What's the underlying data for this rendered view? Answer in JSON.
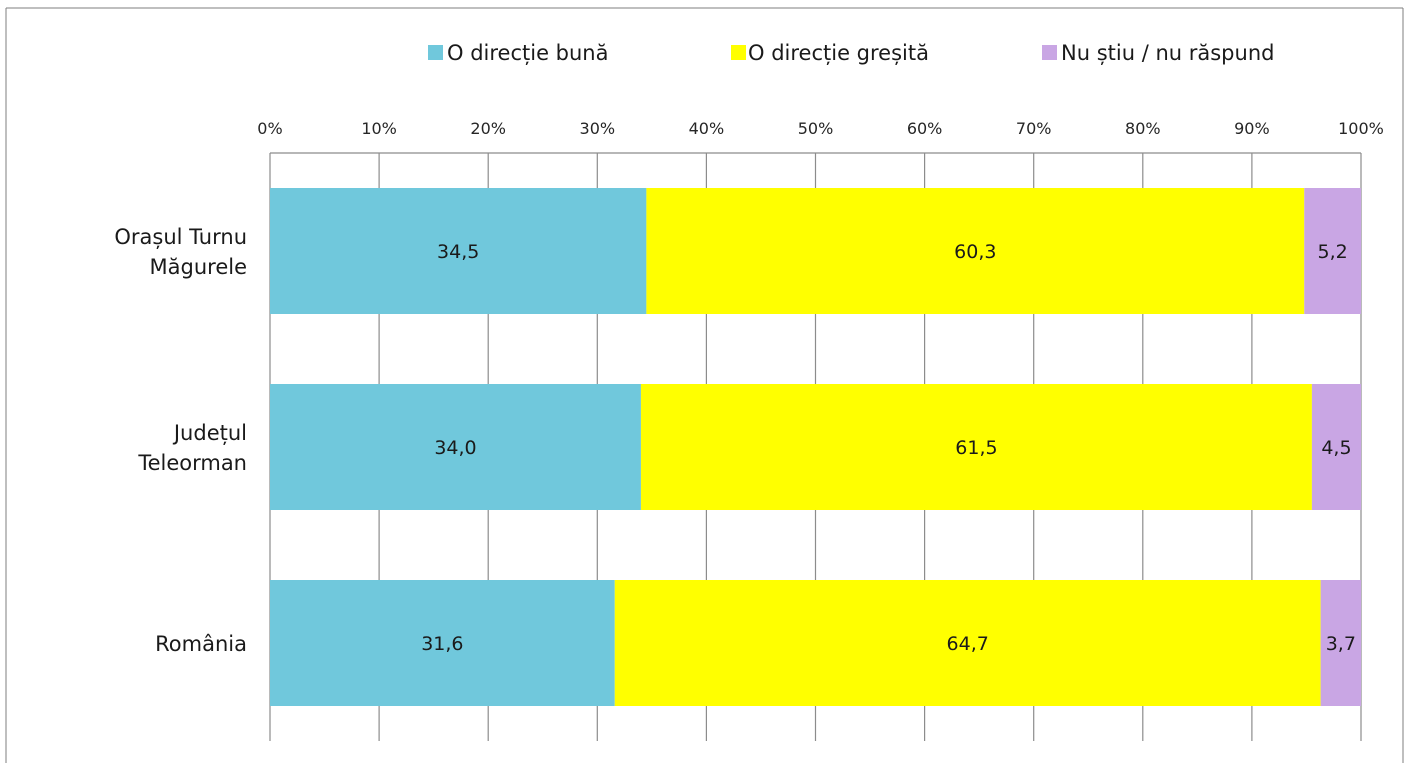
{
  "chart_data": {
    "type": "bar",
    "orientation": "horizontal",
    "stacked": "percent",
    "title": "",
    "xlabel": "",
    "ylabel": "",
    "xlim": [
      0,
      100
    ],
    "x_ticks": [
      "0%",
      "10%",
      "20%",
      "30%",
      "40%",
      "50%",
      "60%",
      "70%",
      "80%",
      "90%",
      "100%"
    ],
    "x_tick_values": [
      0,
      10,
      20,
      30,
      40,
      50,
      60,
      70,
      80,
      90,
      100
    ],
    "x_axis_position": "top",
    "grid": true,
    "legend_position": "top",
    "categories": [
      [
        "Orașul Turnu",
        "Măgurele"
      ],
      [
        "Județul",
        "Teleorman"
      ],
      [
        "România"
      ]
    ],
    "series": [
      {
        "name": "O direcție bună",
        "color": "#70c8dc",
        "values": [
          34.5,
          34.0,
          31.6
        ],
        "labels": [
          "34,5",
          "34,0",
          "31,6"
        ]
      },
      {
        "name": "O direcție greșită",
        "color": "#ffff00",
        "values": [
          60.3,
          61.5,
          64.7
        ],
        "labels": [
          "60,3",
          "61,5",
          "64,7"
        ]
      },
      {
        "name": "Nu știu / nu răspund",
        "color": "#c9a6e4",
        "values": [
          5.2,
          4.5,
          3.7
        ],
        "labels": [
          "5,2",
          "4,5",
          "3,7"
        ]
      }
    ]
  }
}
